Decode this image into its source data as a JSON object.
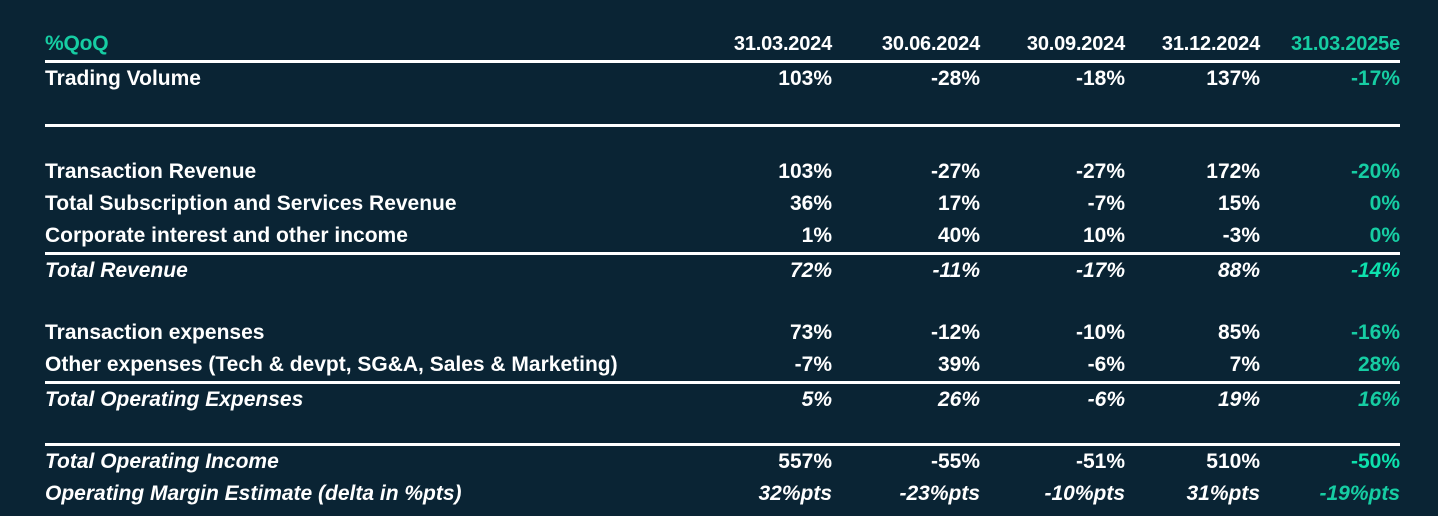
{
  "theme": {
    "background": "#0a2434",
    "text": "#ffffff",
    "accent_teal": "#16cda3",
    "accent_teal_bold": "#0de1ad",
    "rule_color": "#ffffff"
  },
  "table": {
    "corner_label": "%QoQ",
    "columns": [
      "31.03.2024",
      "30.06.2024",
      "30.09.2024",
      "31.12.2024",
      "31.03.2025e"
    ],
    "rows": [
      {
        "label": "Trading Volume",
        "values": [
          "103%",
          "-28%",
          "-18%",
          "137%",
          "-17%"
        ]
      },
      {
        "label": "Transaction Revenue",
        "values": [
          "103%",
          "-27%",
          "-27%",
          "172%",
          "-20%"
        ]
      },
      {
        "label": "Total Subscription and Services Revenue",
        "values": [
          "36%",
          "17%",
          "-7%",
          "15%",
          "0%"
        ]
      },
      {
        "label": "Corporate interest and other income",
        "values": [
          "1%",
          "40%",
          "10%",
          "-3%",
          "0%"
        ]
      },
      {
        "label": "Total Revenue",
        "values": [
          "72%",
          "-11%",
          "-17%",
          "88%",
          "-14%"
        ]
      },
      {
        "label": "Transaction expenses",
        "values": [
          "73%",
          "-12%",
          "-10%",
          "85%",
          "-16%"
        ]
      },
      {
        "label": "Other expenses (Tech & devpt, SG&A, Sales & Marketing)",
        "values": [
          "-7%",
          "39%",
          "-6%",
          "7%",
          "28%"
        ]
      },
      {
        "label": "Total Operating Expenses",
        "values": [
          "5%",
          "26%",
          "-6%",
          "19%",
          "16%"
        ]
      },
      {
        "label": "Total Operating Income",
        "values": [
          "557%",
          "-55%",
          "-51%",
          "510%",
          "-50%"
        ]
      },
      {
        "label": "Operating Margin Estimate (delta in %pts)",
        "values": [
          "32%pts",
          "-23%pts",
          "-10%pts",
          "31%pts",
          "-19%pts"
        ]
      }
    ]
  },
  "chart_data": {
    "type": "table",
    "title": "%QoQ",
    "columns": [
      "%QoQ",
      "31.03.2024",
      "30.06.2024",
      "30.09.2024",
      "31.12.2024",
      "31.03.2025e"
    ],
    "rows": [
      [
        "Trading Volume",
        "103%",
        "-28%",
        "-18%",
        "137%",
        "-17%"
      ],
      [
        "Transaction Revenue",
        "103%",
        "-27%",
        "-27%",
        "172%",
        "-20%"
      ],
      [
        "Total Subscription and Services Revenue",
        "36%",
        "17%",
        "-7%",
        "15%",
        "0%"
      ],
      [
        "Corporate interest and other income",
        "1%",
        "40%",
        "10%",
        "-3%",
        "0%"
      ],
      [
        "Total Revenue",
        "72%",
        "-11%",
        "-17%",
        "88%",
        "-14%"
      ],
      [
        "Transaction expenses",
        "73%",
        "-12%",
        "-10%",
        "85%",
        "-16%"
      ],
      [
        "Other expenses (Tech & devpt, SG&A, Sales & Marketing)",
        "-7%",
        "39%",
        "-6%",
        "7%",
        "28%"
      ],
      [
        "Total Operating Expenses",
        "5%",
        "26%",
        "-6%",
        "19%",
        "16%"
      ],
      [
        "Total Operating Income",
        "557%",
        "-55%",
        "-51%",
        "510%",
        "-50%"
      ],
      [
        "Operating Margin Estimate (delta in %pts)",
        "32%pts",
        "-23%pts",
        "-10%pts",
        "31%pts",
        "-19%pts"
      ]
    ],
    "notes": "Dark navy financial QoQ table; last column (31.03.2025e estimate) shown in teal; total rows italic with white rule above; -14% and -50% bold teal"
  }
}
